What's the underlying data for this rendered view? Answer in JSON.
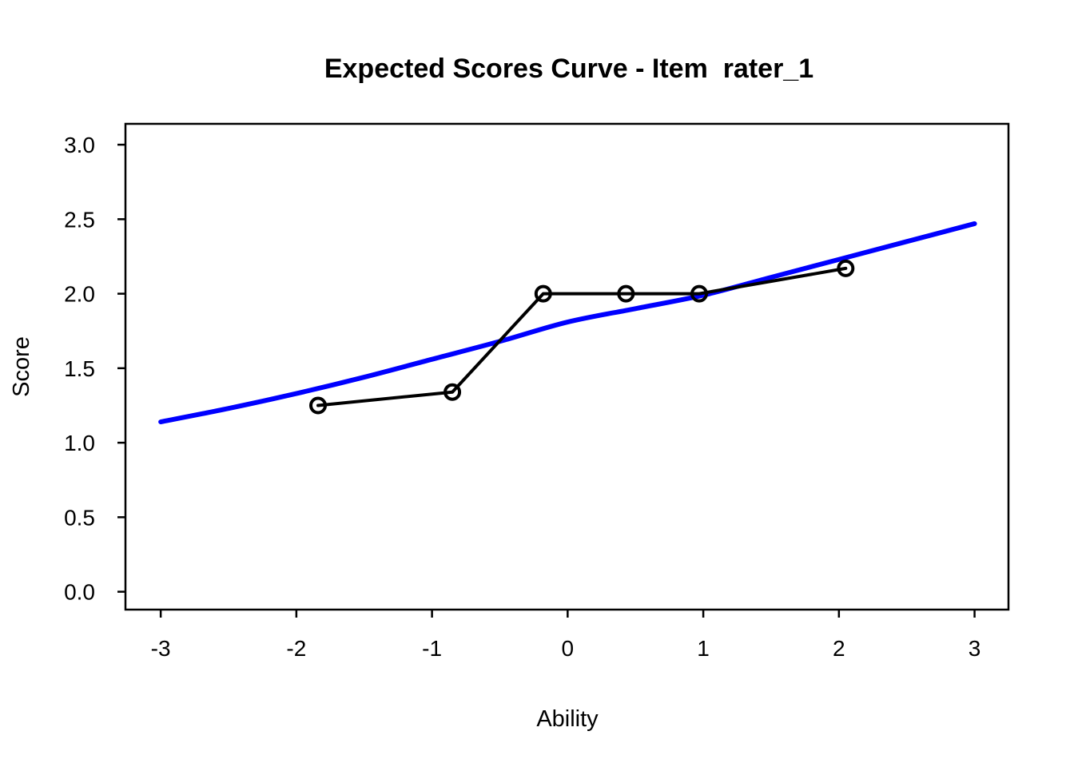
{
  "chart_data": {
    "type": "line",
    "title": "Expected Scores Curve - Item  rater_1",
    "xlabel": "Ability",
    "ylabel": "Score",
    "xlim": [
      -3.26,
      3.25
    ],
    "ylim": [
      -0.12,
      3.14
    ],
    "grid": false,
    "legend": "none",
    "background": "#ffffff",
    "axis_color": "#000000",
    "x_ticks": {
      "values": [
        -3,
        -2,
        -1,
        0,
        1,
        2,
        3
      ],
      "labels": [
        "-3",
        "-2",
        "-1",
        "0",
        "1",
        "2",
        "3"
      ]
    },
    "y_ticks": {
      "values": [
        0,
        0.5,
        1,
        1.5,
        2,
        2.5,
        3
      ],
      "labels": [
        "0.0",
        "0.5",
        "1.0",
        "1.5",
        "2.0",
        "2.5",
        "3.0"
      ]
    },
    "series": [
      {
        "name": "expected-score-curve",
        "type": "smooth-line",
        "color": "#0000ff",
        "line_width": 6,
        "x": [
          -3,
          -2.5,
          -2,
          -1.5,
          -1,
          -0.5,
          0,
          0.5,
          1,
          1.5,
          2,
          2.5,
          3
        ],
        "y": [
          1.14,
          1.23,
          1.33,
          1.44,
          1.56,
          1.68,
          1.81,
          1.9,
          1.99,
          2.11,
          2.23,
          2.35,
          2.47
        ]
      },
      {
        "name": "observed-average-scores",
        "type": "line-with-markers",
        "color": "#000000",
        "line_width": 4,
        "marker": "open-circle",
        "marker_radius": 9,
        "marker_stroke": 4,
        "x": [
          -1.84,
          -0.85,
          -0.18,
          0.43,
          0.97,
          2.05
        ],
        "y": [
          1.25,
          1.34,
          2.0,
          2.0,
          2.0,
          2.17
        ]
      }
    ]
  }
}
